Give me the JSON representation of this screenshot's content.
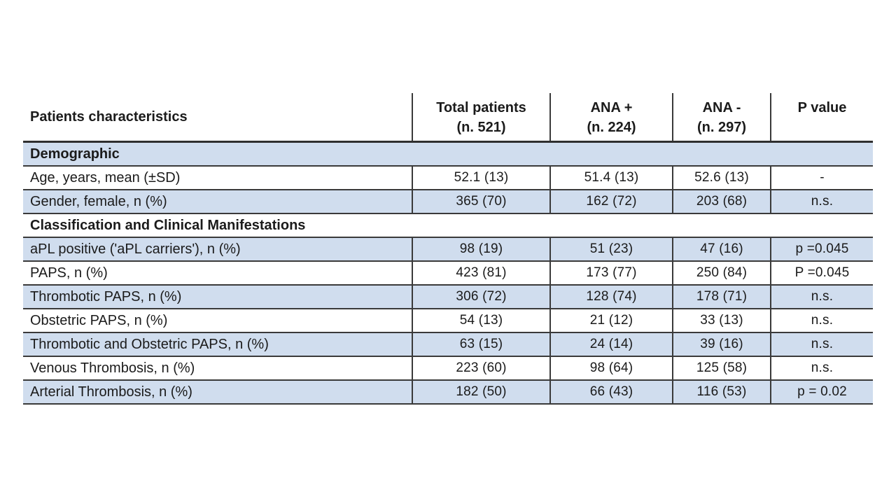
{
  "title": "Patients characteristics table",
  "colors": {
    "row_band_blue": "#d0ddee",
    "border": "#3a3a3a",
    "text": "#1b1b1b",
    "background": "#ffffff"
  },
  "table": {
    "header": [
      {
        "label": "Patients characteristics",
        "sub": ""
      },
      {
        "label": "Total patients",
        "sub": "(n. 521)"
      },
      {
        "label": "ANA +",
        "sub": "(n. 224)"
      },
      {
        "label": "ANA -",
        "sub": "(n. 297)"
      },
      {
        "label": "P value",
        "sub": ""
      }
    ],
    "rows": [
      {
        "type": "section",
        "label": "Demographic"
      },
      {
        "type": "data",
        "label": "Age, years, mean (±SD)",
        "values": [
          "52.1 (13)",
          "51.4 (13)",
          "52.6 (13)",
          "-"
        ]
      },
      {
        "type": "data",
        "label": "Gender, female, n (%)",
        "values": [
          "365 (70)",
          "162 (72)",
          "203 (68)",
          "n.s."
        ]
      },
      {
        "type": "section",
        "label": "Classification and Clinical Manifestations"
      },
      {
        "type": "data",
        "label": "aPL positive ('aPL carriers'), n (%)",
        "values": [
          "98 (19)",
          "51 (23)",
          "47 (16)",
          "p =0.045"
        ]
      },
      {
        "type": "data",
        "label": "PAPS, n (%)",
        "values": [
          "423 (81)",
          "173 (77)",
          "250 (84)",
          "P =0.045"
        ]
      },
      {
        "type": "data",
        "label": "Thrombotic PAPS, n (%)",
        "values": [
          "306 (72)",
          "128 (74)",
          "178 (71)",
          "n.s."
        ]
      },
      {
        "type": "data",
        "label": "Obstetric PAPS, n (%)",
        "values": [
          "54 (13)",
          "21 (12)",
          "33 (13)",
          "n.s."
        ]
      },
      {
        "type": "data",
        "label": "Thrombotic and Obstetric PAPS, n (%)",
        "values": [
          "63 (15)",
          "24 (14)",
          "39 (16)",
          "n.s."
        ]
      },
      {
        "type": "data",
        "label": "Venous Thrombosis, n (%)",
        "values": [
          "223 (60)",
          "98 (64)",
          "125 (58)",
          "n.s."
        ]
      },
      {
        "type": "data",
        "label": "Arterial Thrombosis, n (%)",
        "values": [
          "182 (50)",
          "66 (43)",
          "116 (53)",
          "p = 0.02"
        ]
      }
    ]
  },
  "chart_data": {
    "type": "table",
    "title": "Patients characteristics",
    "columns": [
      "Patients characteristics",
      "Total patients (n. 521)",
      "ANA + (n. 224)",
      "ANA - (n. 297)",
      "P value"
    ],
    "sections": [
      {
        "name": "Demographic",
        "rows": [
          [
            "Age, years, mean (±SD)",
            "52.1 (13)",
            "51.4 (13)",
            "52.6 (13)",
            "-"
          ],
          [
            "Gender, female, n (%)",
            "365 (70)",
            "162 (72)",
            "203 (68)",
            "n.s."
          ]
        ]
      },
      {
        "name": "Classification and Clinical Manifestations",
        "rows": [
          [
            "aPL positive ('aPL carriers'), n (%)",
            "98 (19)",
            "51 (23)",
            "47 (16)",
            "p =0.045"
          ],
          [
            "PAPS, n (%)",
            "423 (81)",
            "173 (77)",
            "250 (84)",
            "P =0.045"
          ],
          [
            "Thrombotic PAPS, n (%)",
            "306 (72)",
            "128 (74)",
            "178 (71)",
            "n.s."
          ],
          [
            "Obstetric PAPS, n (%)",
            "54 (13)",
            "21 (12)",
            "33 (13)",
            "n.s."
          ],
          [
            "Thrombotic and Obstetric PAPS, n (%)",
            "63 (15)",
            "24 (14)",
            "39 (16)",
            "n.s."
          ],
          [
            "Venous Thrombosis, n (%)",
            "223 (60)",
            "98 (64)",
            "125 (58)",
            "n.s."
          ],
          [
            "Arterial Thrombosis, n (%)",
            "182 (50)",
            "66 (43)",
            "116 (53)",
            "p = 0.02"
          ]
        ]
      }
    ]
  }
}
